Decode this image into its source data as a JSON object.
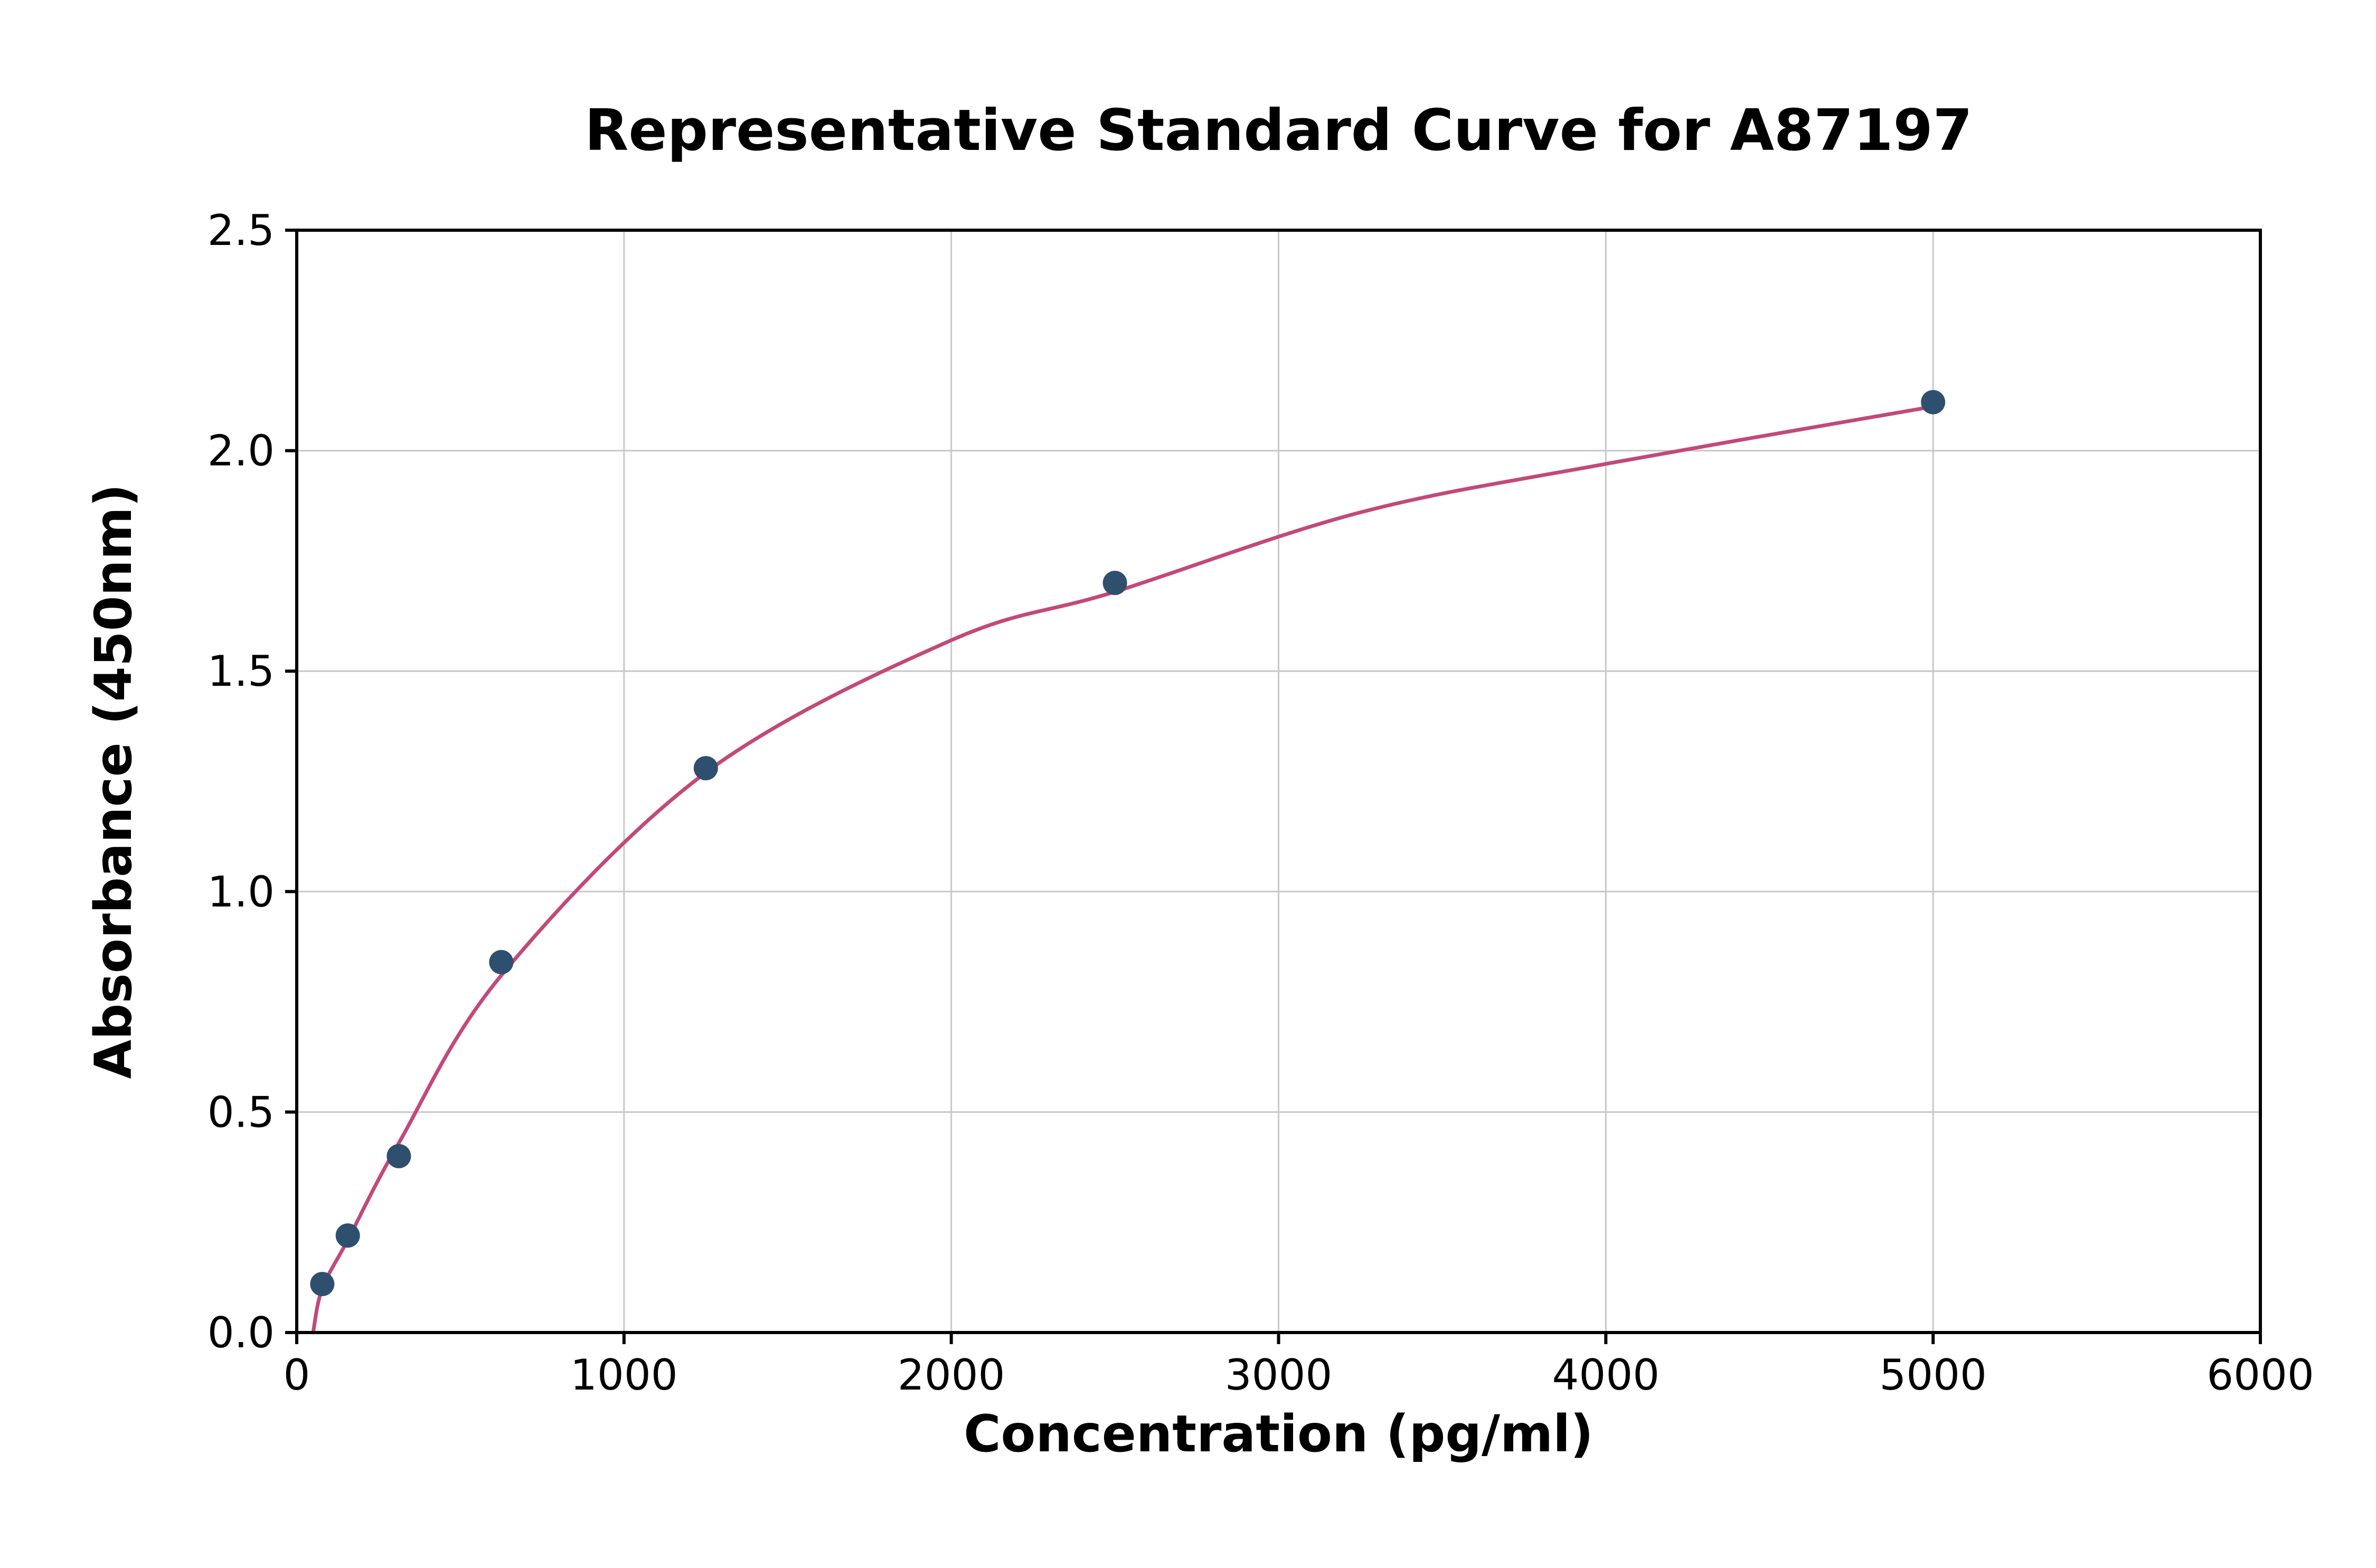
{
  "chart_data": {
    "type": "scatter",
    "title": "Representative Standard Curve for A87197",
    "xlabel": "Concentration (pg/ml)",
    "ylabel": "Absorbance (450nm)",
    "xlim": [
      0,
      6000
    ],
    "ylim": [
      0,
      2.5
    ],
    "xticks": [
      0,
      1000,
      2000,
      3000,
      4000,
      5000,
      6000
    ],
    "xtick_labels": [
      "0",
      "1000",
      "2000",
      "3000",
      "4000",
      "5000",
      "6000"
    ],
    "yticks": [
      0,
      0.5,
      1.0,
      1.5,
      2.0,
      2.5
    ],
    "ytick_labels": [
      "0.0",
      "0.5",
      "1.0",
      "1.5",
      "2.0",
      "2.5"
    ],
    "grid": true,
    "legend": "none",
    "series": [
      {
        "name": "standard-points",
        "type": "scatter",
        "color": "#2f4f6e",
        "x": [
          78,
          156,
          312,
          625,
          1250,
          2500,
          5000
        ],
        "y": [
          0.11,
          0.22,
          0.4,
          0.84,
          1.28,
          1.7,
          2.11
        ]
      },
      {
        "name": "fit-curve",
        "type": "line",
        "color": "#c2497a",
        "points": [
          [
            50,
            0.0
          ],
          [
            78,
            0.1
          ],
          [
            156,
            0.21
          ],
          [
            312,
            0.43
          ],
          [
            625,
            0.81
          ],
          [
            1250,
            1.27
          ],
          [
            2000,
            1.57
          ],
          [
            2500,
            1.68
          ],
          [
            3250,
            1.86
          ],
          [
            4000,
            1.97
          ],
          [
            5000,
            2.1
          ]
        ]
      }
    ],
    "colors": {
      "grid": "#c8c8c8",
      "spine": "#000000",
      "background": "#ffffff",
      "title_text": "#000000"
    }
  }
}
